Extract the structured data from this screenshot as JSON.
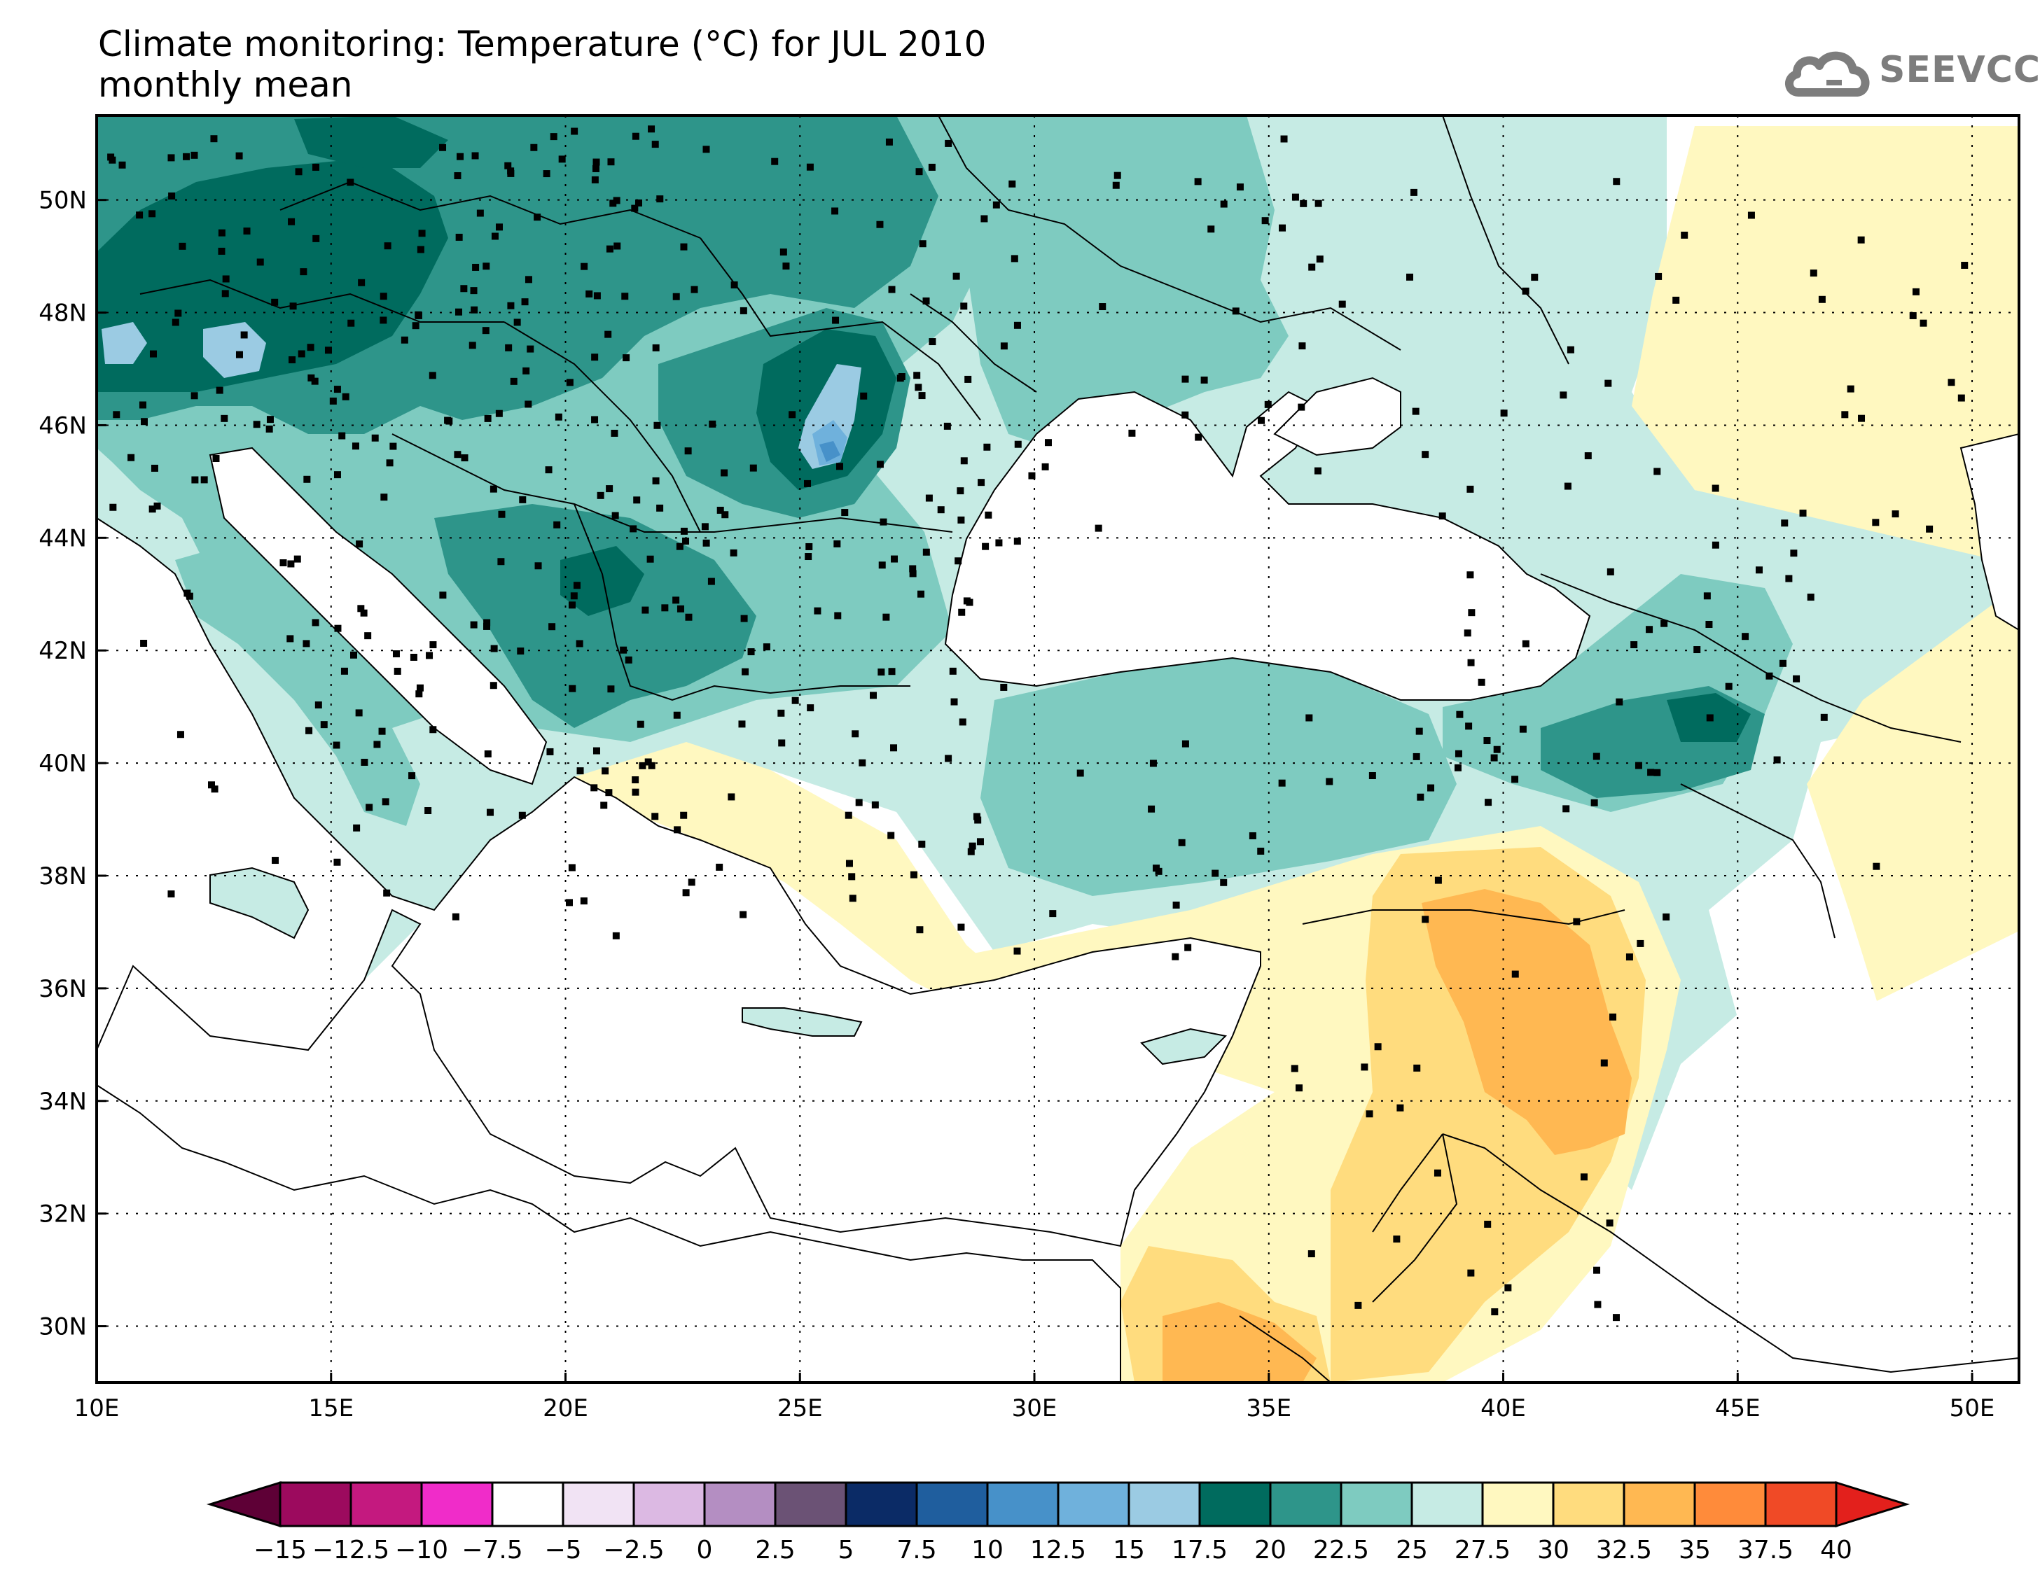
{
  "title": {
    "line1": "Climate monitoring: Temperature (°C) for JUL 2010",
    "line2": "monthly mean"
  },
  "logo": {
    "text": "SEEVCCC",
    "icon": "cloud-icon"
  },
  "map": {
    "lon_range": [
      10,
      51
    ],
    "lat_range": [
      29,
      51.5
    ],
    "x_ticks": [
      "10E",
      "15E",
      "20E",
      "25E",
      "30E",
      "35E",
      "40E",
      "45E",
      "50E"
    ],
    "x_tick_values": [
      10,
      15,
      20,
      25,
      30,
      35,
      40,
      45,
      50
    ],
    "y_ticks": [
      "30N",
      "32N",
      "34N",
      "36N",
      "38N",
      "40N",
      "42N",
      "44N",
      "46N",
      "48N",
      "50N"
    ],
    "y_tick_values": [
      30,
      32,
      34,
      36,
      38,
      40,
      42,
      44,
      46,
      48,
      50
    ],
    "grid": "dotted"
  },
  "colorbar": {
    "labels": [
      "−15",
      "−12.5",
      "−10",
      "−7.5",
      "−5",
      "−2.5",
      "0",
      "2.5",
      "5",
      "7.5",
      "10",
      "12.5",
      "15",
      "17.5",
      "20",
      "22.5",
      "25",
      "27.5",
      "30",
      "32.5",
      "35",
      "37.5",
      "40"
    ],
    "colors": [
      "#9c0a5e",
      "#c4197f",
      "#f02cc9",
      "#ffffff",
      "#f1e3f4",
      "#dcb9e3",
      "#b48ec2",
      "#6b5275",
      "#0b2b66",
      "#1f5e9e",
      "#4791c9",
      "#6fb1dc",
      "#9bcbe3",
      "#006b5e",
      "#2e958a",
      "#7ecbc0",
      "#c6ebe4",
      "#fff8c0",
      "#ffdc7e",
      "#ffb852",
      "#ff8b3a",
      "#f04a26"
    ],
    "low_color": "#5e0036",
    "high_color": "#e3201c"
  }
}
